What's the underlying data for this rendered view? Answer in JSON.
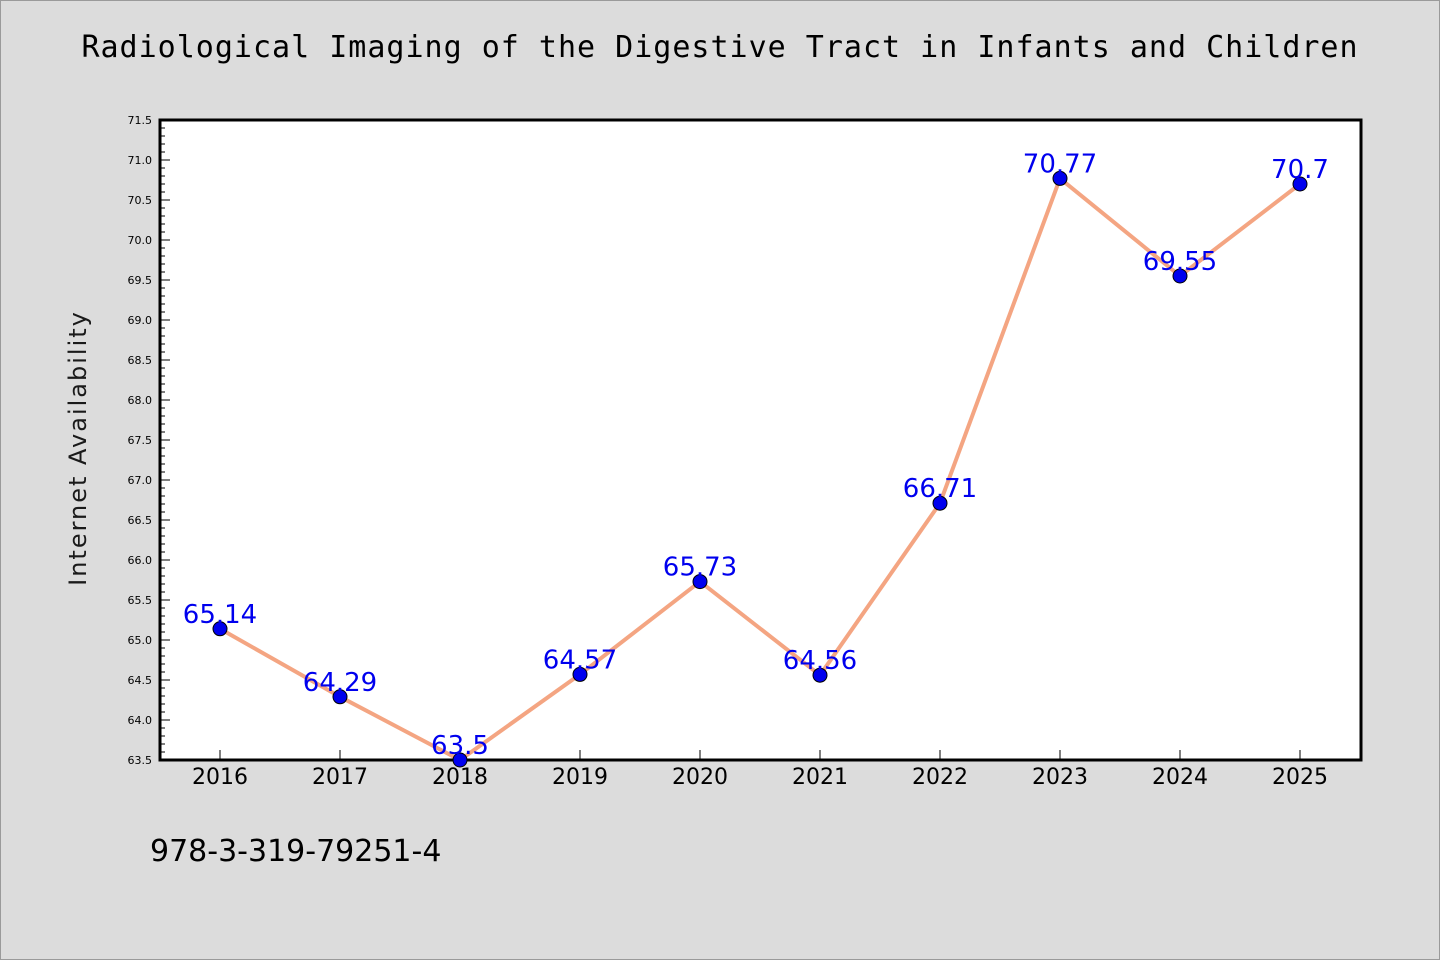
{
  "chart_data": {
    "type": "line",
    "title": "Radiological Imaging of the Digestive Tract in Infants and Children",
    "xlabel": "",
    "ylabel": "Internet Availability",
    "categories": [
      "2016",
      "2017",
      "2018",
      "2019",
      "2020",
      "2021",
      "2022",
      "2023",
      "2024",
      "2025"
    ],
    "series": [
      {
        "values": [
          65.14,
          64.29,
          63.5,
          64.57,
          65.73,
          64.56,
          66.71,
          70.77,
          69.55,
          70.7
        ]
      }
    ],
    "data_labels": [
      "65.14",
      "64.29",
      "63.5",
      "64.57",
      "65.73",
      "64.56",
      "66.71",
      "70.77",
      "69.55",
      "70.7"
    ],
    "ylim": [
      63.5,
      71.5
    ],
    "y_ticks": [
      "63.5",
      "64.0",
      "64.5",
      "65.0",
      "65.5",
      "66.0",
      "66.5",
      "67.0",
      "67.5",
      "68.0",
      "68.5",
      "69.0",
      "69.5",
      "70.0",
      "70.5",
      "71.0",
      "71.5"
    ],
    "grid": false,
    "line_color": "#f4a582",
    "marker_color": "#0000ee",
    "label_color": "#0000ee"
  },
  "footer": {
    "isbn": "978-3-319-79251-4"
  }
}
